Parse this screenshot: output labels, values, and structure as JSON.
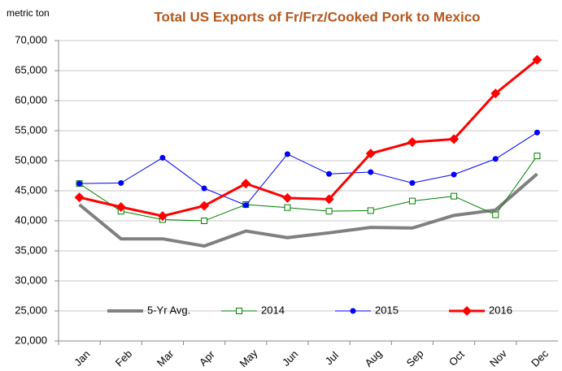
{
  "chart_data": {
    "type": "line",
    "title": "Total US Exports of Fr/Frz/Cooked Pork to Mexico",
    "y_label": "metric ton",
    "categories": [
      "Jan",
      "Feb",
      "Mar",
      "Apr",
      "May",
      "Jun",
      "Jul",
      "Aug",
      "Sep",
      "Oct",
      "Nov",
      "Dec"
    ],
    "series": [
      {
        "name": "5-Yr Avg.",
        "color": "#808080",
        "line_width": 4,
        "marker": "none",
        "values": [
          42700,
          37000,
          37000,
          35800,
          38300,
          37200,
          38000,
          38900,
          38800,
          40900,
          41800,
          47800
        ]
      },
      {
        "name": "2014",
        "color": "#008000",
        "line_width": 1,
        "marker": "open-square",
        "values": [
          46200,
          41600,
          40200,
          40000,
          42700,
          42200,
          41600,
          41700,
          43300,
          44100,
          41000,
          50800
        ]
      },
      {
        "name": "2015",
        "color": "#0000ff",
        "line_width": 1,
        "marker": "circle",
        "values": [
          46200,
          46300,
          50500,
          45400,
          42600,
          51100,
          47800,
          48100,
          46300,
          47700,
          50300,
          54700
        ]
      },
      {
        "name": "2016",
        "color": "#ff0000",
        "line_width": 3,
        "marker": "diamond",
        "values": [
          43900,
          42300,
          40800,
          42500,
          46200,
          43800,
          43600,
          51200,
          53100,
          53600,
          61200,
          66800
        ]
      }
    ],
    "ylim": [
      20000,
      70000
    ],
    "yticks": [
      {
        "value": 20000,
        "label": "20,000"
      },
      {
        "value": 25000,
        "label": "25,000"
      },
      {
        "value": 30000,
        "label": "30,000"
      },
      {
        "value": 35000,
        "label": "35,000"
      },
      {
        "value": 40000,
        "label": "40,000"
      },
      {
        "value": 45000,
        "label": "45,000"
      },
      {
        "value": 50000,
        "label": "50,000"
      },
      {
        "value": 55000,
        "label": "55,000"
      },
      {
        "value": 60000,
        "label": "60,000"
      },
      {
        "value": 65000,
        "label": "65,000"
      },
      {
        "value": 70000,
        "label": "70,000"
      }
    ],
    "grid": true,
    "legend": "bottom"
  }
}
